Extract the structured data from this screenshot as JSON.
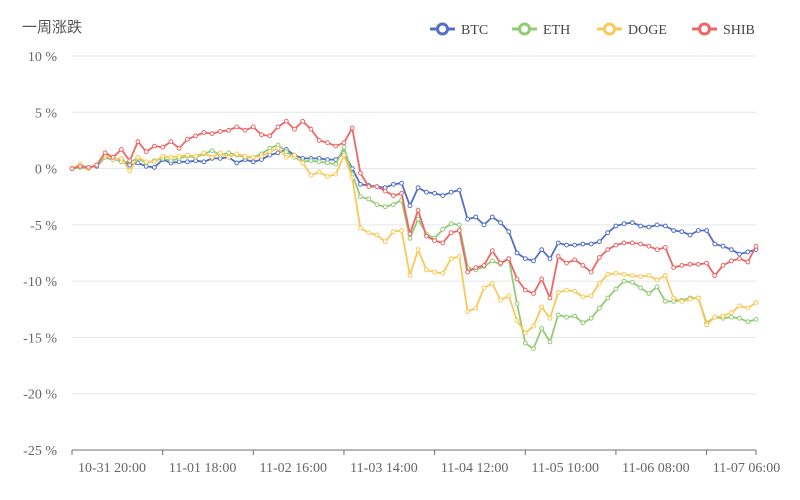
{
  "chart_data": {
    "type": "line",
    "title": "一周涨跌",
    "ylim": [
      -25,
      10
    ],
    "y_ticks": [
      10,
      5,
      0,
      -5,
      -10,
      -15,
      -20,
      -25
    ],
    "y_tick_unit": " %",
    "x_tick_labels": [
      "10-31 20:00",
      "11-01 18:00",
      "11-02 16:00",
      "11-03 14:00",
      "11-04 12:00",
      "11-05 10:00",
      "11-06 08:00",
      "11-07 06:00"
    ],
    "x_tick_indices": [
      0,
      11,
      22,
      33,
      44,
      55,
      66,
      77
    ],
    "x_range": [
      0,
      83
    ],
    "grid": true,
    "legend_position": "top-right",
    "series": [
      {
        "name": "BTC",
        "color": "#5470c6",
        "values": [
          0,
          0.2,
          0.1,
          0.2,
          1.0,
          0.8,
          0.8,
          0.3,
          0.5,
          0.2,
          0.1,
          0.8,
          0.5,
          0.6,
          0.6,
          0.7,
          0.6,
          0.9,
          0.9,
          1.0,
          0.5,
          0.8,
          0.6,
          0.8,
          1.2,
          1.4,
          1.7,
          1.2,
          0.9,
          0.9,
          0.9,
          0.8,
          0.8,
          1.4,
          0.0,
          -1.4,
          -1.5,
          -1.6,
          -1.7,
          -1.4,
          -1.3,
          -3.3,
          -1.7,
          -2.1,
          -2.2,
          -2.4,
          -2.1,
          -1.9,
          -4.5,
          -4.3,
          -5.0,
          -4.3,
          -4.8,
          -5.6,
          -7.5,
          -8.0,
          -8.2,
          -7.2,
          -8.0,
          -6.6,
          -6.8,
          -6.8,
          -6.7,
          -6.7,
          -6.5,
          -5.7,
          -5.1,
          -4.9,
          -4.8,
          -5.1,
          -5.2,
          -5.0,
          -5.1,
          -5.5,
          -5.6,
          -5.9,
          -5.5,
          -5.5,
          -6.7,
          -6.9,
          -7.2,
          -7.6,
          -7.4,
          -7.2
        ]
      },
      {
        "name": "ETH",
        "color": "#91cc75",
        "values": [
          0,
          0.1,
          0.0,
          0.3,
          1.0,
          0.9,
          0.6,
          0.6,
          0.9,
          0.5,
          0.7,
          0.9,
          0.7,
          0.9,
          1.1,
          1.0,
          1.3,
          1.6,
          1.2,
          1.4,
          1.2,
          1.0,
          1.0,
          1.3,
          1.8,
          2.1,
          1.5,
          1.0,
          0.6,
          0.7,
          0.6,
          0.5,
          0.4,
          1.9,
          -0.5,
          -2.5,
          -2.7,
          -3.2,
          -3.4,
          -3.2,
          -2.8,
          -6.2,
          -4.5,
          -5.8,
          -6.2,
          -5.4,
          -4.9,
          -5.0,
          -8.8,
          -9.0,
          -8.7,
          -8.2,
          -8.5,
          -8.0,
          -12.0,
          -15.5,
          -16.0,
          -14.2,
          -15.4,
          -13.0,
          -13.2,
          -13.1,
          -13.7,
          -13.3,
          -12.4,
          -11.5,
          -10.7,
          -10.0,
          -10.1,
          -10.6,
          -11.1,
          -10.5,
          -11.8,
          -11.8,
          -11.7,
          -11.5,
          -11.5,
          -13.7,
          -13.2,
          -13.3,
          -13.2,
          -13.3,
          -13.6,
          -13.4
        ]
      },
      {
        "name": "DOGE",
        "color": "#fac858",
        "values": [
          0,
          0.4,
          0.0,
          0.3,
          1.2,
          0.8,
          0.9,
          -0.2,
          1.0,
          0.6,
          0.6,
          1.1,
          1.0,
          1.1,
          1.2,
          1.1,
          1.4,
          1.0,
          1.4,
          1.0,
          1.3,
          1.1,
          1.0,
          1.1,
          1.5,
          1.8,
          1.0,
          1.2,
          0.5,
          -0.6,
          -0.3,
          -0.7,
          -0.5,
          1.2,
          -0.8,
          -5.3,
          -5.7,
          -5.9,
          -6.5,
          -5.6,
          -5.5,
          -9.5,
          -7.2,
          -9.0,
          -9.2,
          -9.3,
          -8.0,
          -7.8,
          -12.7,
          -12.4,
          -10.6,
          -10.2,
          -11.7,
          -11.3,
          -13.5,
          -14.6,
          -14.0,
          -12.3,
          -13.3,
          -11.0,
          -10.8,
          -10.9,
          -11.4,
          -11.3,
          -10.2,
          -9.4,
          -9.3,
          -9.4,
          -9.5,
          -9.6,
          -9.5,
          -9.9,
          -9.5,
          -11.5,
          -11.8,
          -11.6,
          -11.5,
          -13.9,
          -13.2,
          -13.1,
          -12.8,
          -12.2,
          -12.4,
          -11.9
        ]
      },
      {
        "name": "SHIB",
        "color": "#ee6666",
        "values": [
          0,
          0.2,
          0.1,
          0.3,
          1.4,
          1.0,
          1.7,
          0.7,
          2.4,
          1.5,
          2.0,
          1.9,
          2.4,
          1.8,
          2.6,
          2.9,
          3.2,
          3.1,
          3.3,
          3.4,
          3.7,
          3.4,
          3.7,
          3.0,
          2.9,
          3.7,
          4.2,
          3.5,
          4.2,
          3.5,
          2.5,
          2.3,
          2.0,
          2.3,
          3.6,
          -0.4,
          -1.6,
          -1.6,
          -2.0,
          -2.4,
          -2.2,
          -5.8,
          -3.7,
          -6.0,
          -6.4,
          -6.6,
          -5.7,
          -5.5,
          -9.2,
          -8.8,
          -8.6,
          -7.3,
          -8.4,
          -8.0,
          -9.8,
          -10.8,
          -11.1,
          -9.8,
          -11.5,
          -7.8,
          -8.4,
          -8.1,
          -8.6,
          -9.2,
          -7.9,
          -7.2,
          -6.8,
          -6.6,
          -6.6,
          -6.7,
          -6.9,
          -7.2,
          -7.0,
          -8.8,
          -8.6,
          -8.5,
          -8.5,
          -8.4,
          -9.5,
          -8.6,
          -8.2,
          -8.0,
          -8.3,
          -6.9
        ]
      }
    ]
  }
}
